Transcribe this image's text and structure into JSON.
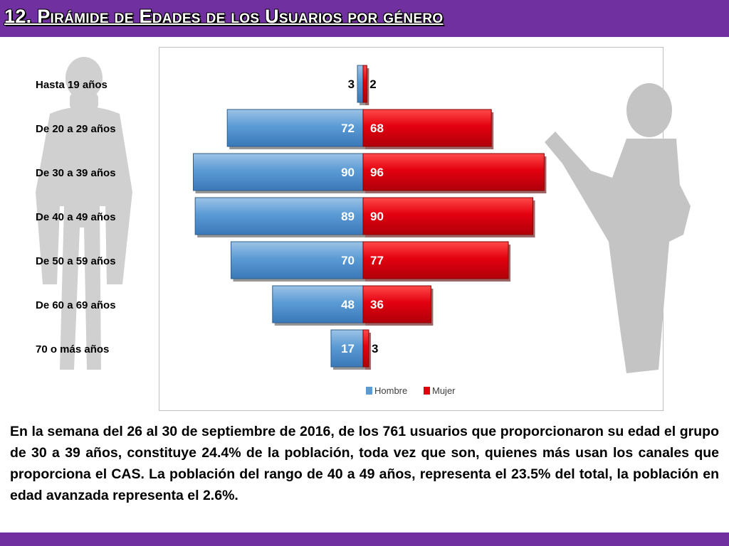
{
  "title": "12. Pirámide de Edades de los Usuarios por género",
  "paragraph": "En la semana del 26 al 30 de septiembre de 2016, de los 761 usuarios  que proporcionaron su edad el grupo de 30 a 39 años,  constituye 24.4% de la población, toda vez que son, quienes más usan los canales que proporciona el CAS. La población del rango de 40 a 49 años, representa el 23.5% del total, la población en edad avanzada representa el 2.6%.",
  "colors": {
    "accent": "#7030a0",
    "hombre": "#5b9bd5",
    "mujer": "#e3000f"
  },
  "chart_data": {
    "type": "bar",
    "orientation": "horizontal-pyramid",
    "categories": [
      "Hasta 19 años",
      "De 20 a 29 años",
      "De 30 a 39 años",
      "De 40 a 49 años",
      "De 50 a 59 años",
      "De 60 a 69 años",
      "70 o más años"
    ],
    "series": [
      {
        "name": "Hombre",
        "values": [
          3,
          72,
          90,
          89,
          70,
          48,
          17
        ]
      },
      {
        "name": "Mujer",
        "values": [
          2,
          68,
          96,
          90,
          77,
          36,
          3
        ]
      }
    ],
    "xlim": [
      -100,
      100
    ],
    "grid": false,
    "legend_position": "bottom"
  }
}
